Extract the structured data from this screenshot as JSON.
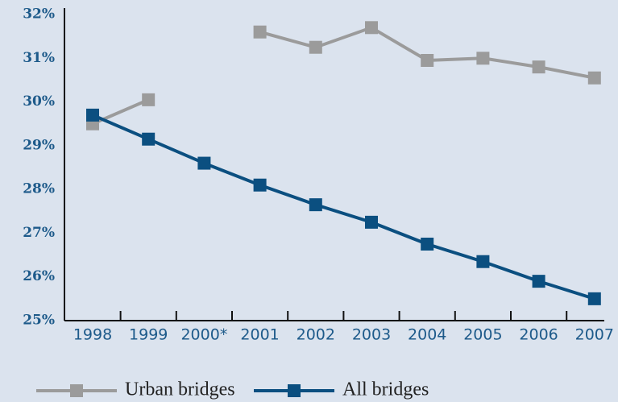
{
  "chart_data": {
    "type": "line",
    "categories": [
      "1998",
      "1999",
      "2000*",
      "2001",
      "2002",
      "2003",
      "2004",
      "2005",
      "2006",
      "2007"
    ],
    "series": [
      {
        "name": "Urban bridges",
        "color": "#9b9b9b",
        "values": [
          29.5,
          30.05,
          null,
          31.6,
          31.25,
          31.7,
          30.95,
          31.0,
          30.8,
          30.55
        ]
      },
      {
        "name": "All bridges",
        "color": "#0b4f80",
        "values": [
          29.7,
          29.15,
          28.6,
          28.1,
          27.65,
          27.25,
          26.75,
          26.35,
          25.9,
          25.5
        ]
      }
    ],
    "ylim": [
      25,
      32
    ],
    "yticks": [
      {
        "value": 25,
        "label": "25%"
      },
      {
        "value": 26,
        "label": "26%"
      },
      {
        "value": 27,
        "label": "27%"
      },
      {
        "value": 28,
        "label": "28%"
      },
      {
        "value": 29,
        "label": "29%"
      },
      {
        "value": 30,
        "label": "30%"
      },
      {
        "value": 31,
        "label": "31%"
      },
      {
        "value": 32,
        "label": "32%"
      }
    ],
    "grid": false
  }
}
